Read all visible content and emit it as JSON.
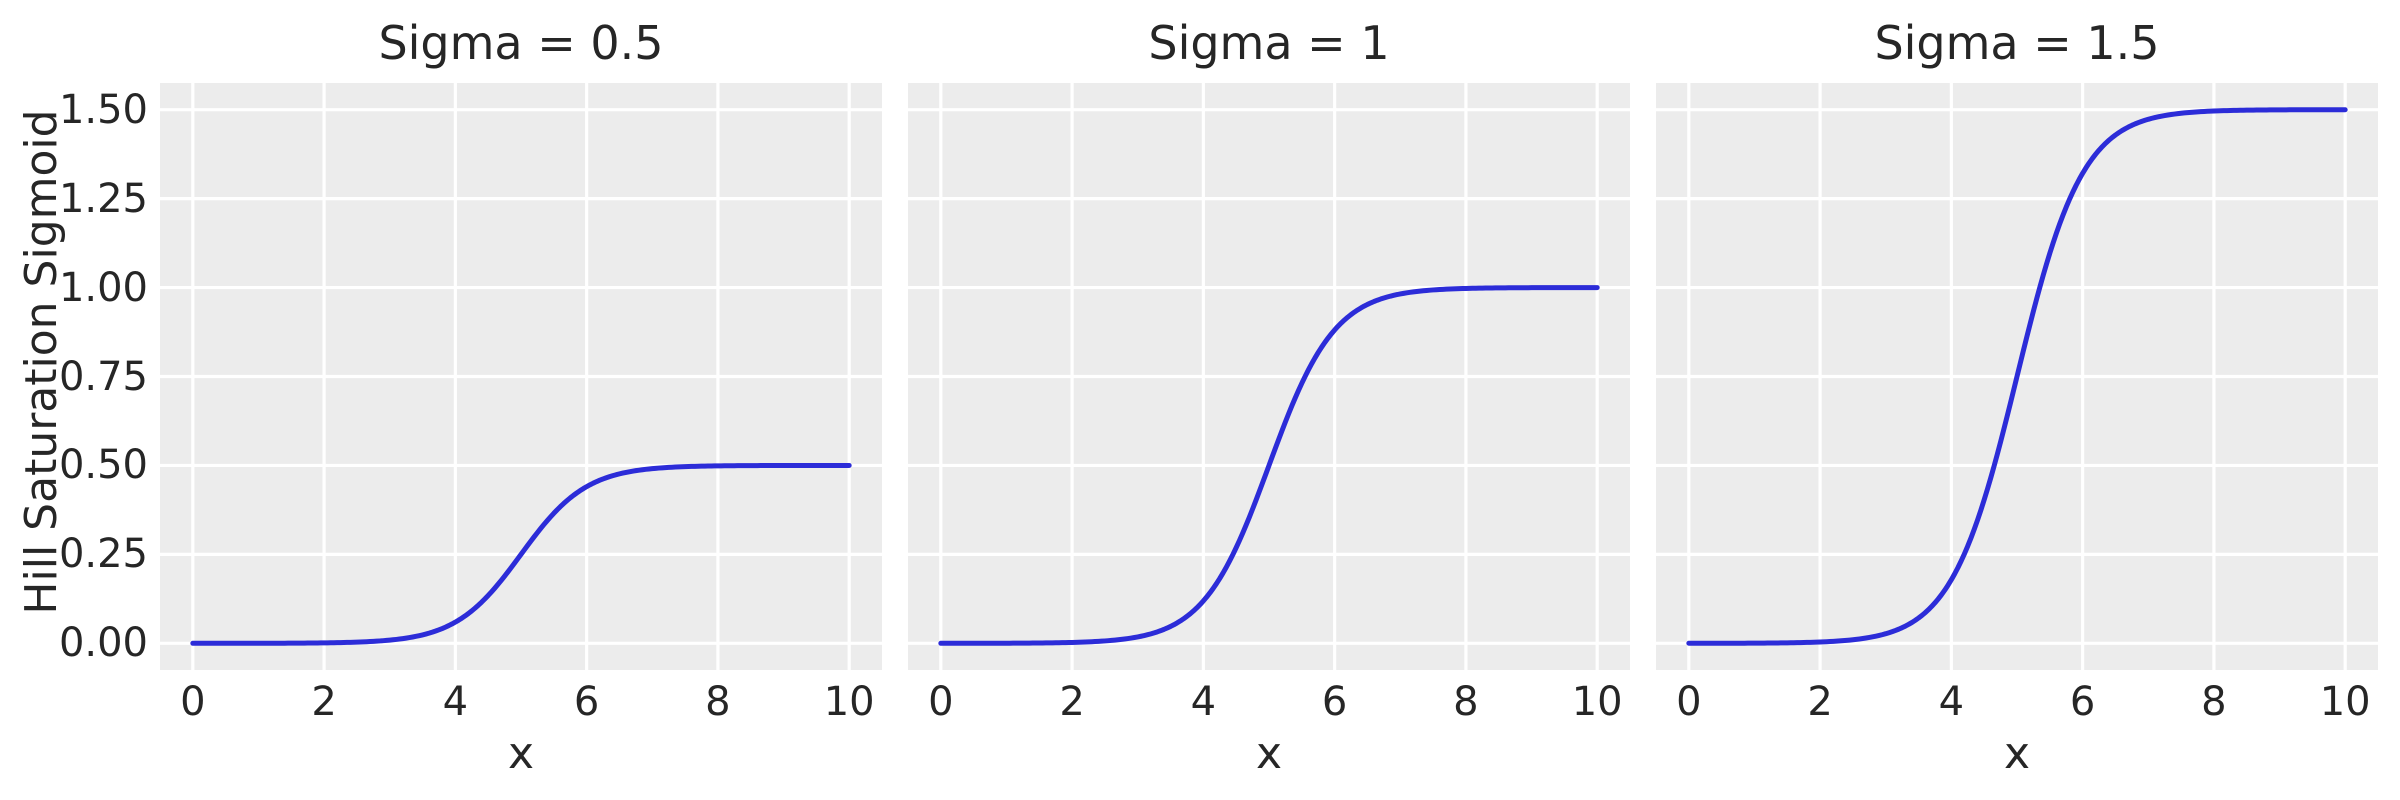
{
  "figure": {
    "ylabel": "Hill Saturation Sigmoid",
    "background_color": "#ffffff",
    "plot_background_color": "#ececec",
    "grid_color": "#ffffff",
    "line_color": "#2c2cd8",
    "text_color": "#262626",
    "y_tick_values": [
      0,
      0.25,
      0.5,
      0.75,
      1.0,
      1.25,
      1.5
    ],
    "y_tick_labels": [
      "0.00",
      "0.25",
      "0.50",
      "0.75",
      "1.00",
      "1.25",
      "1.50"
    ]
  },
  "chart_data": [
    {
      "type": "line",
      "title": "Sigma = 0.5",
      "xlabel": "x",
      "ylabel": "Hill Saturation Sigmoid",
      "xlim": [
        -0.5,
        10.5
      ],
      "ylim": [
        -0.075,
        1.575
      ],
      "grid": true,
      "legend": "none",
      "x_ticks": [
        0,
        2,
        4,
        6,
        8,
        10
      ],
      "x_tick_labels": [
        "0",
        "2",
        "4",
        "6",
        "8",
        "10"
      ],
      "y_ticks": [
        0,
        0.25,
        0.5,
        0.75,
        1.0,
        1.25,
        1.5
      ],
      "model": {
        "form": "logistic",
        "saturation": 0.5,
        "center": 5,
        "scale": 0.5
      },
      "x": [
        0,
        0.25,
        0.5,
        0.75,
        1,
        1.25,
        1.5,
        1.75,
        2,
        2.25,
        2.5,
        2.75,
        3,
        3.25,
        3.5,
        3.75,
        4,
        4.25,
        4.5,
        4.75,
        5,
        5.25,
        5.5,
        5.75,
        6,
        6.25,
        6.5,
        6.75,
        7,
        7.25,
        7.5,
        7.75,
        8,
        8.25,
        8.5,
        8.75,
        9,
        9.25,
        9.5,
        9.75,
        10
      ],
      "y": [
        0.0,
        0.0,
        0.0001,
        0.0001,
        0.0002,
        0.0003,
        0.0005,
        0.0008,
        0.0012,
        0.002,
        0.0033,
        0.0055,
        0.009,
        0.0147,
        0.0237,
        0.0379,
        0.0596,
        0.0912,
        0.1345,
        0.1888,
        0.25,
        0.3112,
        0.3655,
        0.4088,
        0.4404,
        0.4621,
        0.4763,
        0.4853,
        0.491,
        0.4945,
        0.4967,
        0.498,
        0.4988,
        0.4993,
        0.4995,
        0.4997,
        0.4998,
        0.4999,
        0.4999,
        0.5,
        0.5
      ]
    },
    {
      "type": "line",
      "title": "Sigma = 1",
      "xlabel": "x",
      "ylabel": "Hill Saturation Sigmoid",
      "xlim": [
        -0.5,
        10.5
      ],
      "ylim": [
        -0.075,
        1.575
      ],
      "grid": true,
      "legend": "none",
      "x_ticks": [
        0,
        2,
        4,
        6,
        8,
        10
      ],
      "x_tick_labels": [
        "0",
        "2",
        "4",
        "6",
        "8",
        "10"
      ],
      "y_ticks": [
        0,
        0.25,
        0.5,
        0.75,
        1.0,
        1.25,
        1.5
      ],
      "model": {
        "form": "logistic",
        "saturation": 1.0,
        "center": 5,
        "scale": 0.5
      },
      "x": [
        0,
        0.25,
        0.5,
        0.75,
        1,
        1.25,
        1.5,
        1.75,
        2,
        2.25,
        2.5,
        2.75,
        3,
        3.25,
        3.5,
        3.75,
        4,
        4.25,
        4.5,
        4.75,
        5,
        5.25,
        5.5,
        5.75,
        6,
        6.25,
        6.5,
        6.75,
        7,
        7.25,
        7.5,
        7.75,
        8,
        8.25,
        8.5,
        8.75,
        9,
        9.25,
        9.5,
        9.75,
        10
      ],
      "y": [
        0.0,
        0.0001,
        0.0001,
        0.0002,
        0.0003,
        0.0006,
        0.0009,
        0.0015,
        0.0025,
        0.0041,
        0.0067,
        0.011,
        0.018,
        0.0293,
        0.0474,
        0.0759,
        0.1192,
        0.1824,
        0.2689,
        0.3775,
        0.5,
        0.6225,
        0.7311,
        0.8176,
        0.8808,
        0.9241,
        0.9526,
        0.9707,
        0.982,
        0.989,
        0.9933,
        0.9959,
        0.9975,
        0.9985,
        0.9991,
        0.9995,
        0.9997,
        0.9998,
        0.9999,
        0.9999,
        1.0
      ]
    },
    {
      "type": "line",
      "title": "Sigma = 1.5",
      "xlabel": "x",
      "ylabel": "Hill Saturation Sigmoid",
      "xlim": [
        -0.5,
        10.5
      ],
      "ylim": [
        -0.075,
        1.575
      ],
      "grid": true,
      "legend": "none",
      "x_ticks": [
        0,
        2,
        4,
        6,
        8,
        10
      ],
      "x_tick_labels": [
        "0",
        "2",
        "4",
        "6",
        "8",
        "10"
      ],
      "y_ticks": [
        0,
        0.25,
        0.5,
        0.75,
        1.0,
        1.25,
        1.5
      ],
      "model": {
        "form": "logistic",
        "saturation": 1.5,
        "center": 5,
        "scale": 0.5
      },
      "x": [
        0,
        0.25,
        0.5,
        0.75,
        1,
        1.25,
        1.5,
        1.75,
        2,
        2.25,
        2.5,
        2.75,
        3,
        3.25,
        3.5,
        3.75,
        4,
        4.25,
        4.5,
        4.75,
        5,
        5.25,
        5.5,
        5.75,
        6,
        6.25,
        6.5,
        6.75,
        7,
        7.25,
        7.5,
        7.75,
        8,
        8.25,
        8.5,
        8.75,
        9,
        9.25,
        9.5,
        9.75,
        10
      ],
      "y": [
        0.0001,
        0.0001,
        0.0002,
        0.0003,
        0.0005,
        0.0008,
        0.0014,
        0.0023,
        0.0037,
        0.0061,
        0.01,
        0.0165,
        0.027,
        0.044,
        0.0711,
        0.1138,
        0.1788,
        0.2736,
        0.4034,
        0.5663,
        0.75,
        0.9337,
        1.0966,
        1.2264,
        1.3212,
        1.3862,
        1.4289,
        1.456,
        1.473,
        1.4835,
        1.49,
        1.4939,
        1.4963,
        1.4978,
        1.4986,
        1.4992,
        1.4995,
        1.4997,
        1.4998,
        1.4999,
        1.4999
      ]
    }
  ]
}
